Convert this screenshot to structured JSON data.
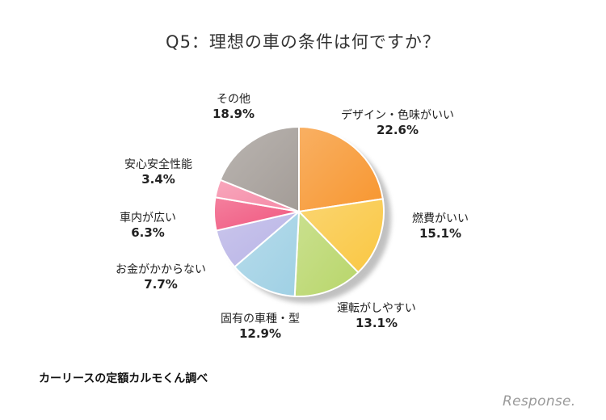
{
  "chart_data": {
    "type": "pie",
    "title": "Q5：理想の車の条件は何ですか？",
    "slices": [
      {
        "label": "デザイン・色味がいい",
        "value": 22.6,
        "value_text": "22.6%",
        "color": "#F7962F"
      },
      {
        "label": "燃費がいい",
        "value": 15.1,
        "value_text": "15.1%",
        "color": "#F9C742"
      },
      {
        "label": "運転がしやすい",
        "value": 13.1,
        "value_text": "13.1%",
        "color": "#B8D66A"
      },
      {
        "label": "固有の車種・型",
        "value": 12.9,
        "value_text": "12.9%",
        "color": "#9FD0E4"
      },
      {
        "label": "お金がかからない",
        "value": 7.7,
        "value_text": "7.7%",
        "color": "#B8B3E6"
      },
      {
        "label": "車内が広い",
        "value": 6.3,
        "value_text": "6.3%",
        "color": "#F0557E"
      },
      {
        "label": "安心安全性能",
        "value": 3.4,
        "value_text": "3.4%",
        "color": "#F589A6"
      },
      {
        "label": "その他",
        "value": 18.9,
        "value_text": "18.9%",
        "color": "#A39C97"
      }
    ],
    "start": "12 o'clock",
    "direction": "clockwise",
    "legend": "none",
    "labels": "outside"
  },
  "source": "カーリースの定額カルモくん調べ",
  "watermark": "Response."
}
